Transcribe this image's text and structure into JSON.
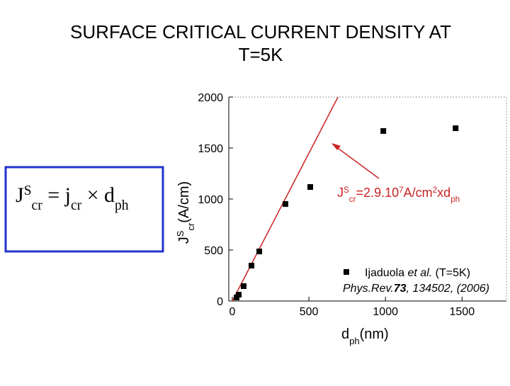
{
  "title_lines": [
    "SURFACE CRITICAL CURRENT DENSITY AT",
    "T=5K"
  ],
  "formula": {
    "parts": [
      {
        "text": "J"
      },
      {
        "text": "S",
        "pos": "super"
      },
      {
        "text": "cr",
        "pos": "sub"
      },
      {
        "text": " = j"
      },
      {
        "text": "cr",
        "pos": "sub"
      },
      {
        "text": " × d"
      },
      {
        "text": "ph",
        "pos": "sub"
      }
    ]
  },
  "chart_data": {
    "type": "scatter",
    "x": [
      28,
      42,
      74,
      125,
      176,
      347,
      509,
      986,
      1458
    ],
    "values": [
      35,
      62,
      146,
      347,
      486,
      951,
      1118,
      1667,
      1694
    ],
    "color": "#000000",
    "xlim": [
      -23,
      1790
    ],
    "ylim": [
      0,
      2000
    ],
    "xticks": [
      0,
      500,
      1000,
      1500
    ],
    "yticks": [
      0,
      500,
      1000,
      1500,
      2000
    ],
    "x_label": [
      {
        "text": "d"
      },
      {
        "text": "ph",
        "pos": "sub"
      },
      {
        "text": "(nm)"
      }
    ],
    "y_label": [
      {
        "text": "J"
      },
      {
        "text": "S",
        "pos": "super"
      },
      {
        "text": "cr",
        "pos": "sub"
      },
      {
        "text": "(A/cm)"
      }
    ],
    "fit": {
      "x": [
        0,
        690
      ],
      "y": [
        0,
        2000
      ],
      "color": "#cc2222"
    },
    "annotation": [
      {
        "text": "J"
      },
      {
        "text": "S",
        "pos": "super"
      },
      {
        "text": "cr",
        "pos": "sub"
      },
      {
        "text": "=2.9.10"
      },
      {
        "text": "7",
        "pos": "super"
      },
      {
        "text": "A/cm"
      },
      {
        "text": "2",
        "pos": "super"
      },
      {
        "text": "xd"
      },
      {
        "text": "ph",
        "pos": "sub"
      }
    ],
    "legend_lines": [
      [
        {
          "text": "Ijaduola "
        },
        {
          "text": "et al.",
          "style": "italic"
        },
        {
          "text": " (T=5K)"
        }
      ],
      [
        {
          "text": "Phys.Rev.",
          "style": "italic"
        },
        {
          "text": "73",
          "style": "italic",
          "weight": "bold"
        },
        {
          "text": ", 134502, (2006)",
          "style": "italic"
        }
      ]
    ]
  }
}
